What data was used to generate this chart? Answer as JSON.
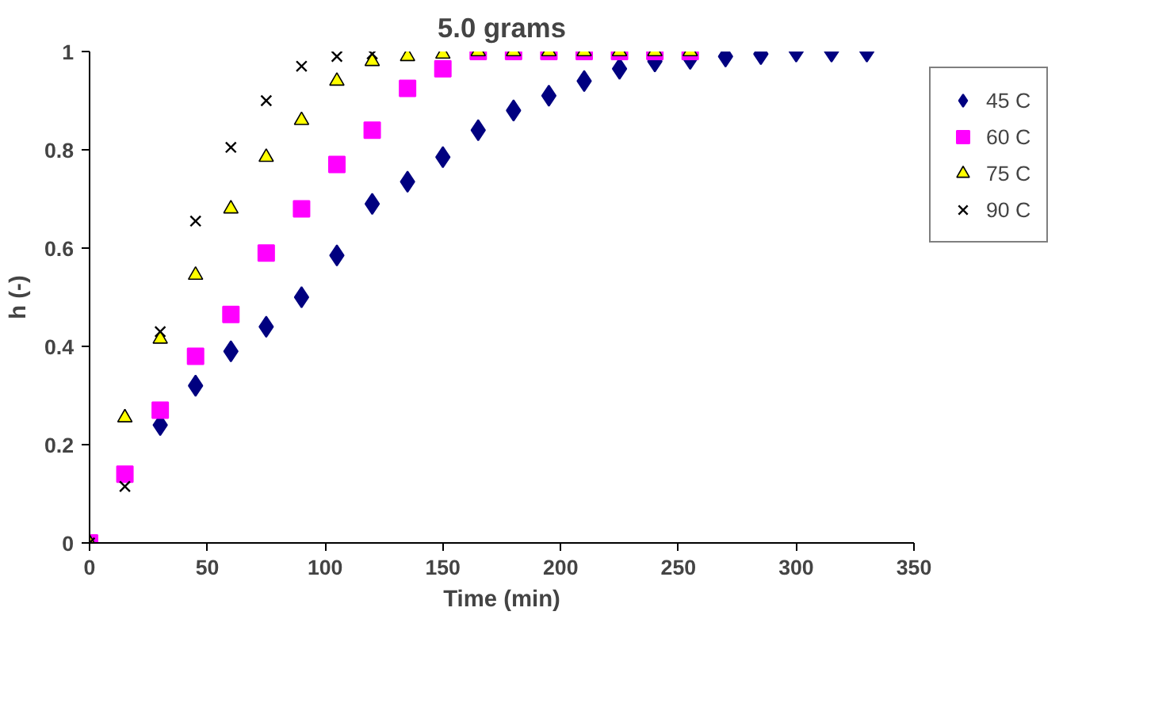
{
  "chart_data": {
    "type": "scatter",
    "title": "5.0 grams",
    "xlabel": "Time (min)",
    "ylabel": "h (-)",
    "xlim": [
      0,
      350
    ],
    "xticks": [
      0,
      50,
      100,
      150,
      200,
      250,
      300,
      350
    ],
    "ylim": [
      0,
      1
    ],
    "yticks": [
      0,
      0.2,
      0.4,
      0.6,
      0.8,
      1
    ],
    "grid": false,
    "legend": "right",
    "series": [
      {
        "name": "45 C",
        "color": "#000080",
        "marker": "diamond",
        "x": [
          30,
          45,
          60,
          75,
          90,
          105,
          120,
          135,
          150,
          165,
          180,
          195,
          210,
          225,
          240,
          255,
          270,
          285,
          300,
          315,
          330
        ],
        "values": [
          0.24,
          0.32,
          0.39,
          0.44,
          0.5,
          0.585,
          0.69,
          0.735,
          0.785,
          0.84,
          0.88,
          0.91,
          0.94,
          0.965,
          0.98,
          0.985,
          0.99,
          0.995,
          1,
          1,
          1
        ]
      },
      {
        "name": "60 C",
        "color": "#ff00ff",
        "marker": "square",
        "x": [
          0,
          15,
          30,
          45,
          60,
          75,
          90,
          105,
          120,
          135,
          150,
          165,
          180,
          195,
          210,
          225,
          240,
          255
        ],
        "values": [
          0,
          0.14,
          0.27,
          0.38,
          0.465,
          0.59,
          0.68,
          0.77,
          0.84,
          0.925,
          0.965,
          1,
          1,
          1,
          1,
          1,
          1,
          1
        ]
      },
      {
        "name": "75 C",
        "color": "#ffff00",
        "marker": "triangle",
        "x": [
          0,
          15,
          30,
          45,
          60,
          75,
          90,
          105,
          120,
          135,
          150,
          165,
          180,
          195,
          210,
          225,
          240,
          255
        ],
        "values": [
          0,
          0.255,
          0.415,
          0.545,
          0.68,
          0.785,
          0.86,
          0.94,
          0.98,
          0.99,
          0.995,
          1,
          1,
          1,
          1,
          1,
          1,
          1
        ]
      },
      {
        "name": "90 C",
        "color": "#000000",
        "marker": "cross",
        "x": [
          0,
          15,
          30,
          45,
          60,
          75,
          90,
          105,
          120
        ],
        "values": [
          0,
          0.115,
          0.43,
          0.655,
          0.805,
          0.9,
          0.97,
          0.99,
          0.995
        ]
      }
    ]
  }
}
